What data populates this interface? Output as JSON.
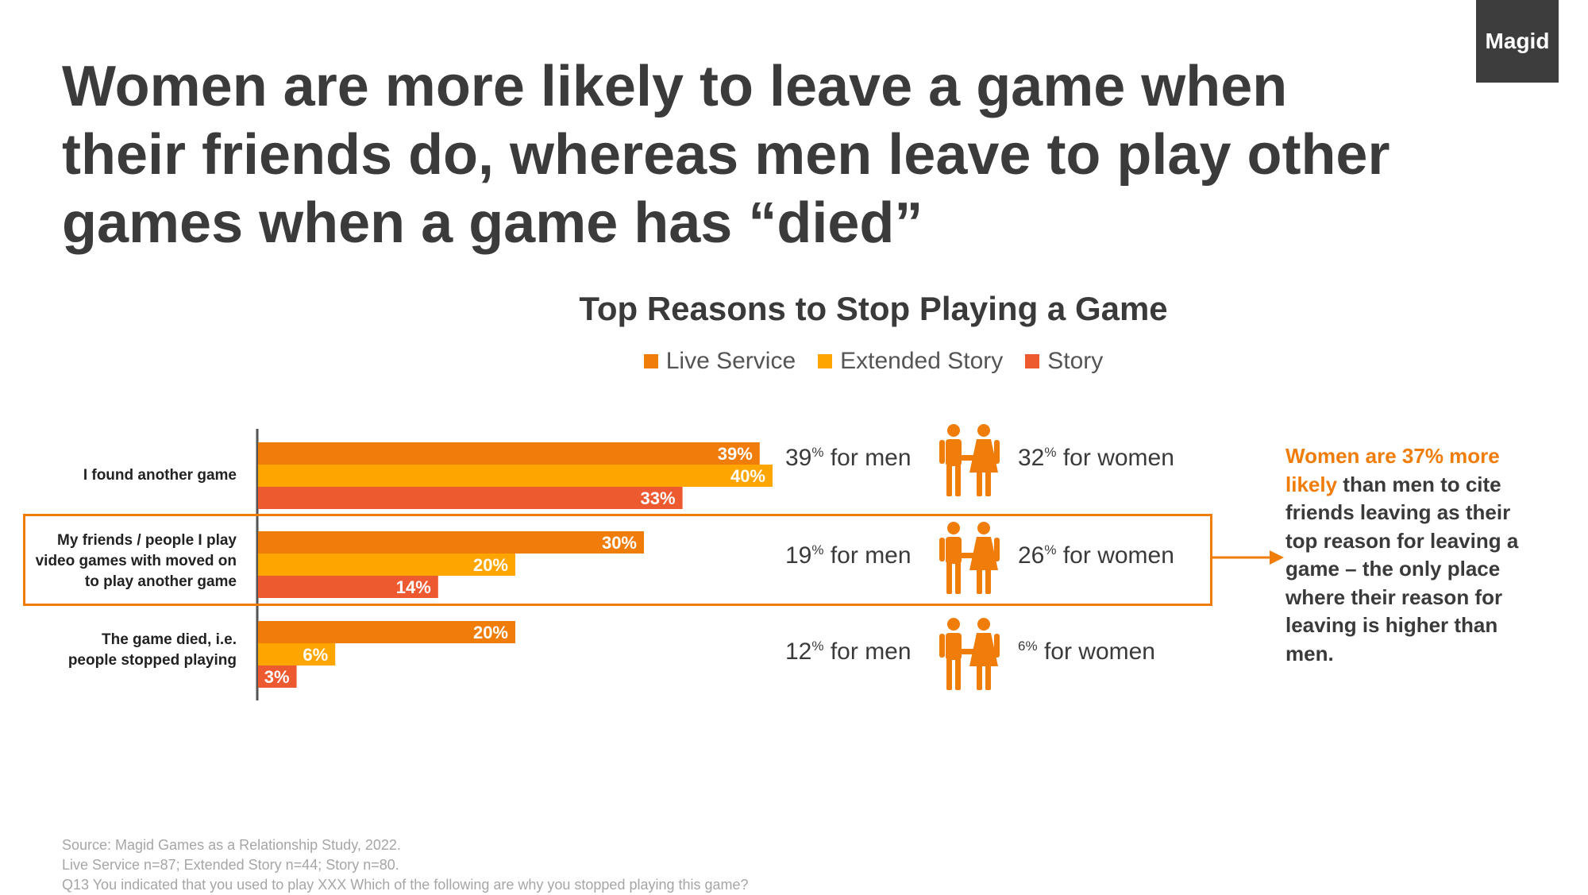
{
  "logo": "Magid",
  "headline": "Women are more likely to leave a game when their friends do, whereas men leave to play other games when a game has “died”",
  "colors": {
    "live_service": "#f07d0a",
    "extended_story": "#ffa500",
    "story": "#ee5a30",
    "accent": "#f07d0a"
  },
  "chart_data": {
    "type": "bar",
    "orientation": "horizontal",
    "title": "Top Reasons to Stop Playing a Game",
    "categories": [
      "I found another game",
      "My friends / people I play video games with moved on to play another game",
      "The game died, i.e. people stopped playing"
    ],
    "category_lines": [
      [
        "I found another game"
      ],
      [
        "My friends / people I play",
        "video games with moved on",
        "to play another game"
      ],
      [
        "The game died, i.e.",
        "people stopped playing"
      ]
    ],
    "series": [
      {
        "name": "Live Service",
        "values": [
          39,
          30,
          20
        ],
        "color": "#f07d0a"
      },
      {
        "name": "Extended Story",
        "values": [
          40,
          20,
          6
        ],
        "color": "#ffa500"
      },
      {
        "name": "Story",
        "values": [
          33,
          14,
          3
        ],
        "color": "#ee5a30"
      }
    ],
    "data_labels": [
      [
        "39%",
        "30%",
        "20%"
      ],
      [
        "40%",
        "20%",
        "6%"
      ],
      [
        "33%",
        "14%",
        "3%"
      ]
    ],
    "xlim": [
      0,
      50
    ],
    "legend_position": "top-center",
    "grid": false
  },
  "gender": {
    "rows": [
      {
        "men_pct": "39",
        "men_text": "for men",
        "women_pct": "32",
        "women_text": "for women"
      },
      {
        "men_pct": "19",
        "men_text": "for men",
        "women_pct": "26",
        "women_text": "for women"
      },
      {
        "men_pct": "12",
        "men_text": "for men",
        "women_pct": "6",
        "women_text": "for women"
      }
    ],
    "pct_sign": "%"
  },
  "callout": {
    "accent_text": "Women are 37% more likely",
    "rest_text": " than men to cite friends leaving as their top reason for leaving a game – the only place where their reason for leaving is higher than men."
  },
  "source": {
    "line1": "Source: Magid Games as a Relationship Study, 2022.",
    "line2": "Live Service n=87; Extended Story n=44; Story n=80.",
    "line3": "Q13 You indicated that you used to play XXX Which of the following are why you stopped playing this game?"
  }
}
